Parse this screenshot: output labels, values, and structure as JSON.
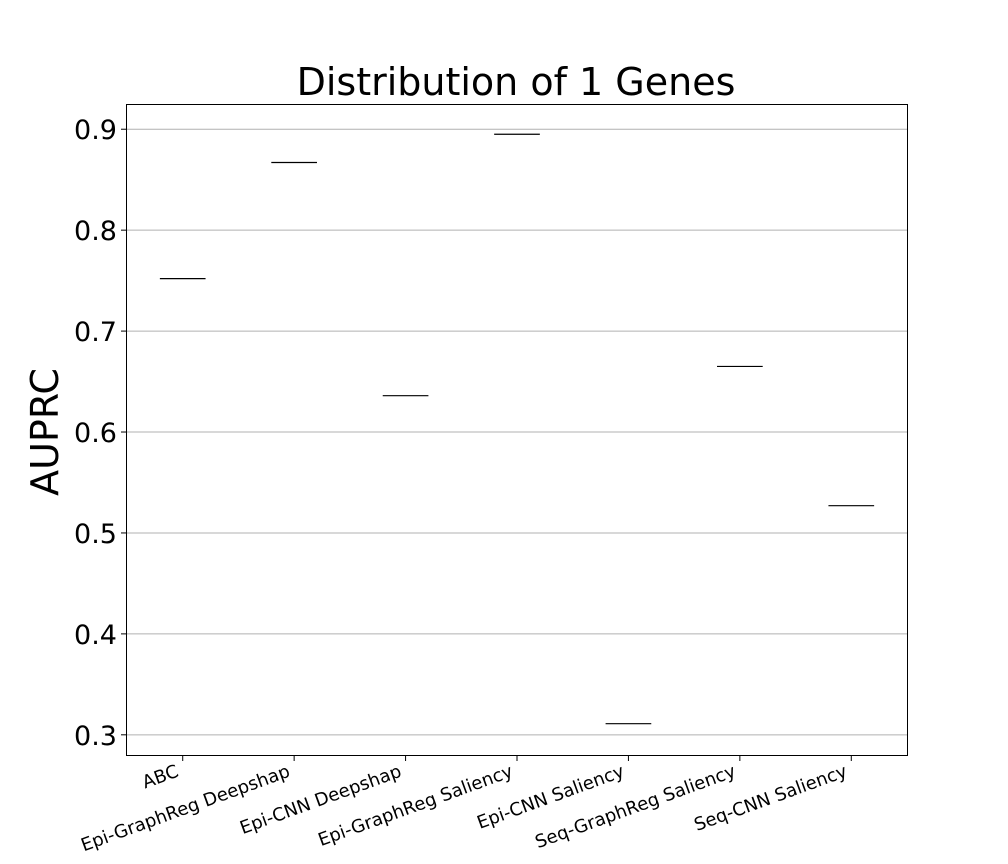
{
  "chart_data": {
    "type": "box",
    "title": "Distribution of 1 Genes",
    "xlabel": "",
    "ylabel": "AUPRC",
    "categories": [
      "ABC",
      "Epi-GraphReg Deepshap",
      "Epi-CNN Deepshap",
      "Epi-GraphReg Saliency",
      "Epi-CNN Saliency",
      "Seq-GraphReg Saliency",
      "Seq-CNN Saliency"
    ],
    "values": [
      0.752,
      0.867,
      0.636,
      0.895,
      0.311,
      0.665,
      0.527
    ],
    "yticks": [
      "0.3",
      "0.4",
      "0.5",
      "0.6",
      "0.7",
      "0.8",
      "0.9"
    ],
    "ylim": [
      0.28,
      0.924
    ],
    "grid": "horizontal"
  }
}
